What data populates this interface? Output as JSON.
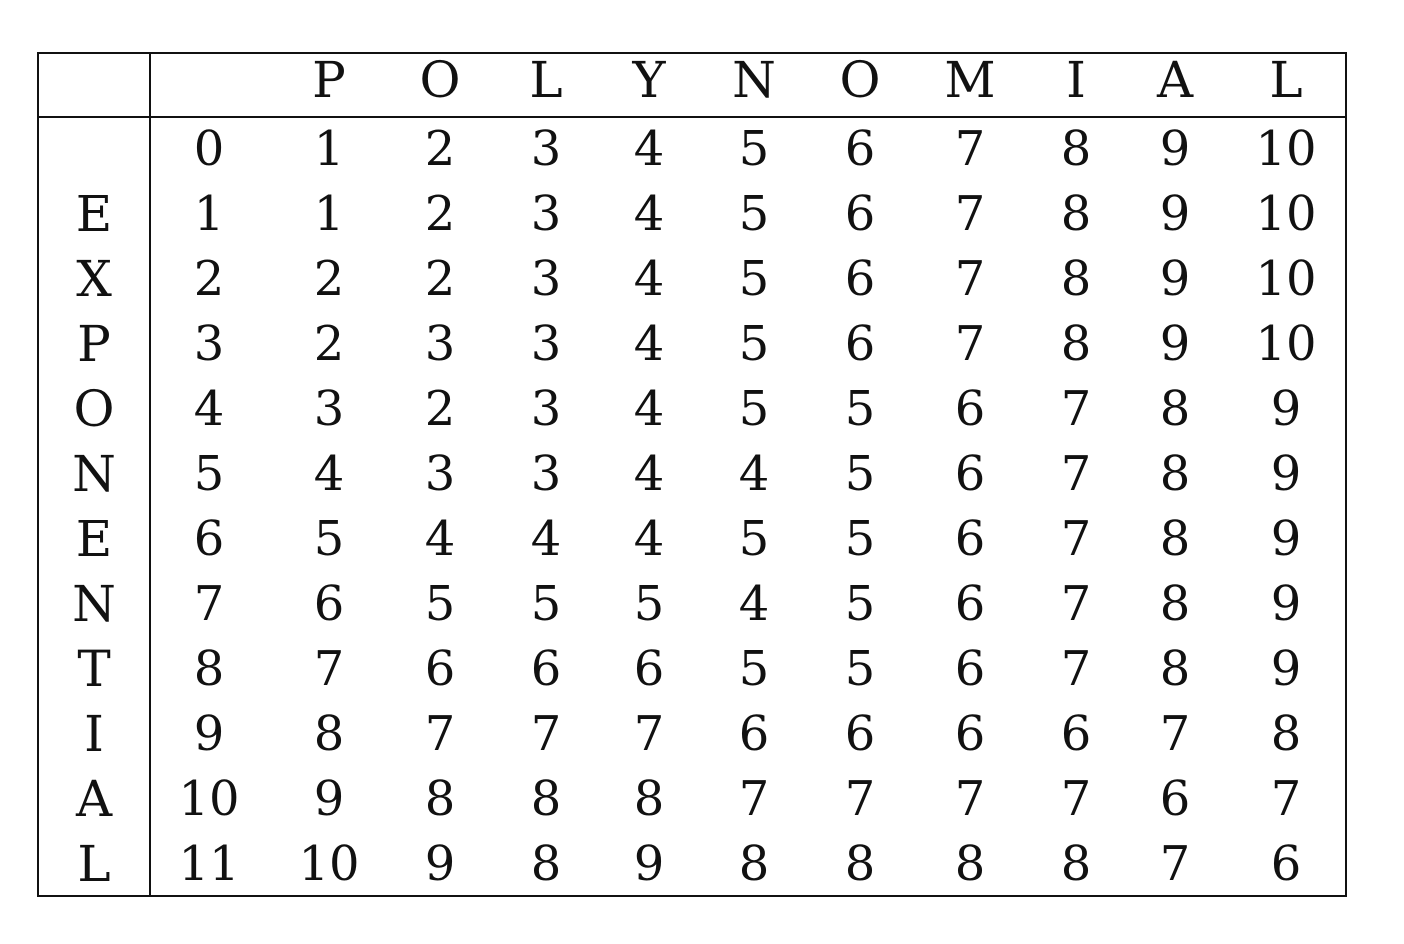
{
  "table": {
    "top_word_letters": [
      "",
      "P",
      "O",
      "L",
      "Y",
      "N",
      "O",
      "M",
      "I",
      "A",
      "L"
    ],
    "side_word_letters": [
      "",
      "E",
      "X",
      "P",
      "O",
      "N",
      "E",
      "N",
      "T",
      "I",
      "A",
      "L"
    ],
    "rows": [
      [
        "0",
        "1",
        "2",
        "3",
        "4",
        "5",
        "6",
        "7",
        "8",
        "9",
        "10"
      ],
      [
        "1",
        "1",
        "2",
        "3",
        "4",
        "5",
        "6",
        "7",
        "8",
        "9",
        "10"
      ],
      [
        "2",
        "2",
        "2",
        "3",
        "4",
        "5",
        "6",
        "7",
        "8",
        "9",
        "10"
      ],
      [
        "3",
        "2",
        "3",
        "3",
        "4",
        "5",
        "6",
        "7",
        "8",
        "9",
        "10"
      ],
      [
        "4",
        "3",
        "2",
        "3",
        "4",
        "5",
        "5",
        "6",
        "7",
        "8",
        "9"
      ],
      [
        "5",
        "4",
        "3",
        "3",
        "4",
        "4",
        "5",
        "6",
        "7",
        "8",
        "9"
      ],
      [
        "6",
        "5",
        "4",
        "4",
        "4",
        "5",
        "5",
        "6",
        "7",
        "8",
        "9"
      ],
      [
        "7",
        "6",
        "5",
        "5",
        "5",
        "4",
        "5",
        "6",
        "7",
        "8",
        "9"
      ],
      [
        "8",
        "7",
        "6",
        "6",
        "6",
        "5",
        "5",
        "6",
        "7",
        "8",
        "9"
      ],
      [
        "9",
        "8",
        "7",
        "7",
        "7",
        "6",
        "6",
        "6",
        "6",
        "7",
        "8"
      ],
      [
        "10",
        "9",
        "8",
        "8",
        "8",
        "7",
        "7",
        "7",
        "7",
        "6",
        "7"
      ],
      [
        "11",
        "10",
        "9",
        "8",
        "9",
        "8",
        "8",
        "8",
        "8",
        "7",
        "6"
      ]
    ]
  }
}
